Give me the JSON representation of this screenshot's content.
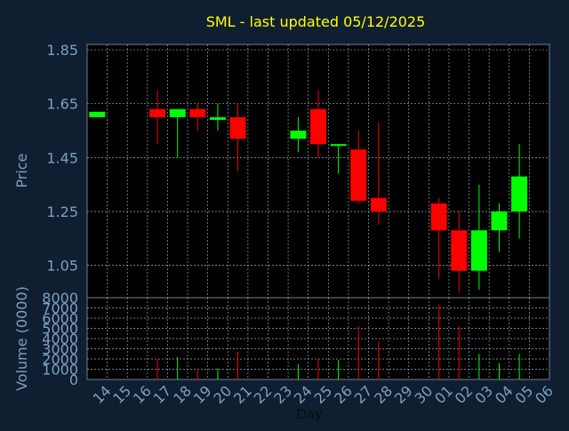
{
  "chart_data": {
    "type": "candlestick",
    "title": "SML - last updated 05/12/2025",
    "xlabel": "Day",
    "price_ylabel": "Price",
    "volume_ylabel": "Volume (0000)",
    "price_ylim": [
      0.93,
      1.87
    ],
    "price_ticks": [
      "1.85",
      "1.65",
      "1.45",
      "1.25",
      "1.05"
    ],
    "volume_ylim": [
      0,
      8000
    ],
    "volume_ticks": [
      "8000",
      "7000",
      "6000",
      "5000",
      "4000",
      "3000",
      "2000",
      "1000",
      "0"
    ],
    "x_labels": [
      "14",
      "15",
      "16",
      "17",
      "18",
      "19",
      "20",
      "21",
      "22",
      "23",
      "24",
      "25",
      "26",
      "27",
      "28",
      "29",
      "30",
      "01",
      "02",
      "03",
      "04",
      "05",
      "06"
    ],
    "grid": true,
    "colors": {
      "up": "#00ff00",
      "down": "#ff0000",
      "background": "#0f1e30",
      "plot": "#000000",
      "title": "#ffff00",
      "axis_text": "#7f9fc0"
    },
    "candles": [
      {
        "x": "14",
        "open": 1.6,
        "high": 1.62,
        "low": 1.6,
        "close": 1.62,
        "volume": 0
      },
      {
        "x": "17",
        "open": 1.63,
        "high": 1.7,
        "low": 1.5,
        "close": 1.6,
        "volume": 2000
      },
      {
        "x": "18",
        "open": 1.6,
        "high": 1.63,
        "low": 1.45,
        "close": 1.63,
        "volume": 2200
      },
      {
        "x": "19",
        "open": 1.63,
        "high": 1.65,
        "low": 1.55,
        "close": 1.6,
        "volume": 900
      },
      {
        "x": "20",
        "open": 1.59,
        "high": 1.65,
        "low": 1.55,
        "close": 1.6,
        "volume": 1100
      },
      {
        "x": "21",
        "open": 1.6,
        "high": 1.65,
        "low": 1.4,
        "close": 1.52,
        "volume": 2700
      },
      {
        "x": "24",
        "open": 1.52,
        "high": 1.6,
        "low": 1.47,
        "close": 1.55,
        "volume": 1500
      },
      {
        "x": "25",
        "open": 1.63,
        "high": 1.7,
        "low": 1.45,
        "close": 1.5,
        "volume": 2000
      },
      {
        "x": "26",
        "open": 1.5,
        "high": 1.5,
        "low": 1.39,
        "close": 1.5,
        "volume": 1900
      },
      {
        "x": "27",
        "open": 1.48,
        "high": 1.55,
        "low": 1.28,
        "close": 1.29,
        "volume": 5200
      },
      {
        "x": "28",
        "open": 1.3,
        "high": 1.58,
        "low": 1.2,
        "close": 1.25,
        "volume": 3700
      },
      {
        "x": "01",
        "open": 1.28,
        "high": 1.3,
        "low": 1.0,
        "close": 1.18,
        "volume": 7300
      },
      {
        "x": "02",
        "open": 1.18,
        "high": 1.25,
        "low": 0.95,
        "close": 1.03,
        "volume": 5200
      },
      {
        "x": "03",
        "open": 1.03,
        "high": 1.35,
        "low": 0.96,
        "close": 1.18,
        "volume": 2500
      },
      {
        "x": "04",
        "open": 1.18,
        "high": 1.28,
        "low": 1.1,
        "close": 1.25,
        "volume": 1600
      },
      {
        "x": "05",
        "open": 1.25,
        "high": 1.5,
        "low": 1.15,
        "close": 1.38,
        "volume": 2500
      }
    ]
  }
}
